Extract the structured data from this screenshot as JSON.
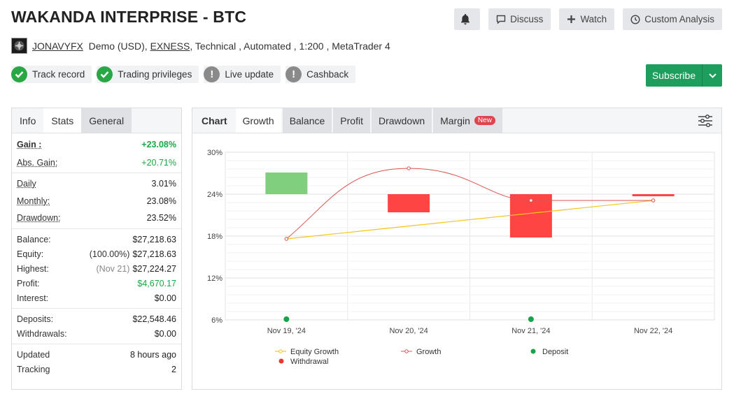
{
  "title": "WAKANDA INTERPRISE - BTC",
  "actions": {
    "discuss": "Discuss",
    "watch": "Watch",
    "custom_analysis": "Custom Analysis",
    "subscribe": "Subscribe"
  },
  "meta": {
    "user": "JONAVYFX",
    "account": "Demo (USD),",
    "broker": "EXNESS",
    "rest": ", Technical , Automated , 1:200 , MetaTrader 4"
  },
  "badges": [
    {
      "label": "Track record",
      "status": "ok"
    },
    {
      "label": "Trading privileges",
      "status": "ok"
    },
    {
      "label": "Live update",
      "status": "warn"
    },
    {
      "label": "Cashback",
      "status": "warn"
    }
  ],
  "left_tabs": [
    "Info",
    "Stats",
    "General"
  ],
  "stats": {
    "gain": {
      "label": "Gain :",
      "value": "+23.08%"
    },
    "abs_gain": {
      "label": "Abs. Gain:",
      "value": "+20.71%"
    },
    "daily": {
      "label": "Daily",
      "value": "3.01%"
    },
    "monthly": {
      "label": "Monthly:",
      "value": "23.08%"
    },
    "drawdown": {
      "label": "Drawdown:",
      "value": "23.52%"
    },
    "balance": {
      "label": "Balance:",
      "value": "$27,218.63"
    },
    "equity": {
      "label": "Equity:",
      "pct": "(100.00%)",
      "value": "$27,218.63"
    },
    "highest": {
      "label": "Highest:",
      "date": "(Nov 21)",
      "value": "$27,224.27"
    },
    "profit": {
      "label": "Profit:",
      "value": "$4,670.17"
    },
    "interest": {
      "label": "Interest:",
      "value": "$0.00"
    },
    "deposits": {
      "label": "Deposits:",
      "value": "$22,548.46"
    },
    "withdrawals": {
      "label": "Withdrawals:",
      "value": "$0.00"
    },
    "updated": {
      "label": "Updated",
      "value": "8 hours ago"
    },
    "tracking": {
      "label": "Tracking",
      "value": "2"
    }
  },
  "chart_tabs": {
    "chart": "Chart",
    "growth": "Growth",
    "balance": "Balance",
    "profit": "Profit",
    "drawdown": "Drawdown",
    "margin": "Margin",
    "new": "New"
  },
  "colors": {
    "green": "#1e9e5c",
    "equity": "#f5c518",
    "growth": "#d9534f",
    "bar_up": "#7fcf7f",
    "bar_down": "#ff4444",
    "deposit": "#17a34a",
    "withdrawal": "#e53935"
  },
  "chart_data": {
    "type": "line",
    "x": [
      "Nov 19, '24",
      "Nov 20, '24",
      "Nov 21, '24",
      "Nov 22, '24"
    ],
    "ylim": [
      6,
      30
    ],
    "yticks": [
      "30%",
      "24%",
      "18%",
      "12%",
      "6%"
    ],
    "ytick_values": [
      30,
      24,
      18,
      12,
      6
    ],
    "series": [
      {
        "name": "Equity Growth",
        "values": [
          17.6,
          null,
          null,
          23.1
        ]
      },
      {
        "name": "Growth",
        "values": [
          17.6,
          27.7,
          23.1,
          23.1
        ]
      }
    ],
    "bars": [
      {
        "x": 0,
        "from": 24,
        "to": 27.1
      },
      {
        "x": 1,
        "from": 24,
        "to": 21.4
      },
      {
        "x": 2,
        "from": 24,
        "to": 17.8
      },
      {
        "x": 3,
        "from": 24,
        "to": 23.7
      }
    ],
    "deposits": [
      0,
      2
    ],
    "legend": [
      "Equity Growth",
      "Growth",
      "Deposit",
      "Withdrawal"
    ]
  }
}
